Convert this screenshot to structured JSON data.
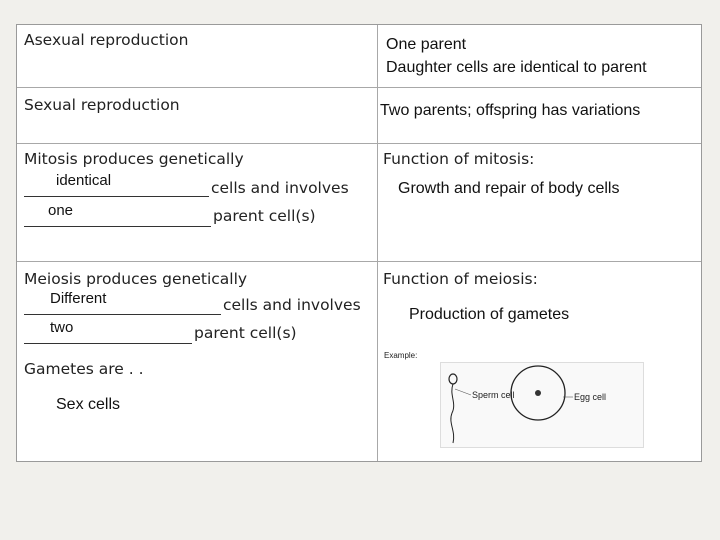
{
  "rows": [
    {
      "left": "Asexual reproduction",
      "right_lines": [
        "One parent",
        "Daughter cells are identical to parent"
      ]
    },
    {
      "left": "Sexual reproduction",
      "right": "Two parents; offspring has variations"
    }
  ],
  "mitosis": {
    "line1": "Mitosis produces genetically",
    "blank1": "identical",
    "after1": "cells and involves",
    "blank2": "one",
    "after2": "parent cell(s)",
    "function_title": "Function of mitosis:",
    "function_text": "Growth  and repair of body cells"
  },
  "meiosis": {
    "line1": "Meiosis produces genetically",
    "blank1": "Different",
    "after1": "cells and involves",
    "blank2": "two",
    "after2": "parent cell(s)",
    "function_title": "Function of meiosis:",
    "function_text": "Production of gametes"
  },
  "gametes": {
    "title": "Gametes are . .",
    "answer": "Sex cells"
  },
  "example": {
    "label": "Example:",
    "sperm_label": "Sperm cell",
    "egg_label": "Egg cell"
  }
}
